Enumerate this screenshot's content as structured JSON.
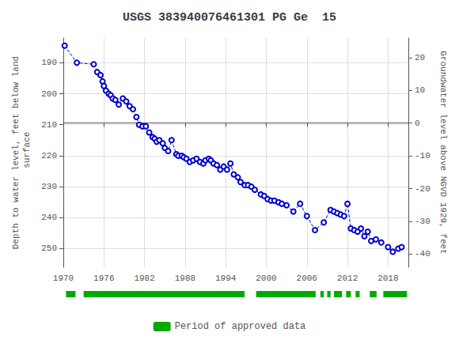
{
  "chart_data": {
    "type": "line",
    "title": "USGS 383940076461301 PG Ge  15",
    "y_label": "Depth to water level, feet below land\n surface",
    "y2_label": "Groundwater level above NGVD 1929, feet",
    "x": [
      1970.2,
      1972.0,
      1974.5,
      1975.0,
      1975.5,
      1975.8,
      1976.0,
      1976.3,
      1976.7,
      1977.0,
      1977.3,
      1977.7,
      1978.2,
      1978.8,
      1979.3,
      1979.8,
      1980.3,
      1980.8,
      1981.2,
      1981.7,
      1982.2,
      1982.7,
      1983.2,
      1983.5,
      1983.8,
      1984.2,
      1984.7,
      1985.0,
      1985.5,
      1986.0,
      1986.7,
      1987.0,
      1987.5,
      1987.8,
      1988.2,
      1988.7,
      1989.2,
      1989.7,
      1990.2,
      1990.7,
      1991.0,
      1991.5,
      1991.8,
      1992.2,
      1992.7,
      1993.2,
      1993.7,
      1994.2,
      1994.7,
      1995.2,
      1995.8,
      1996.2,
      1996.8,
      1997.3,
      1997.8,
      1998.3,
      1999.2,
      1999.7,
      2000.2,
      2000.7,
      2001.2,
      2001.8,
      2002.3,
      2003.0,
      2004.0,
      2005.0,
      2006.0,
      2007.2,
      2008.5,
      2009.5,
      2010.0,
      2010.5,
      2011.0,
      2011.5,
      2012.0,
      2012.5,
      2013.0,
      2013.5,
      2014.0,
      2014.5,
      2015.0,
      2015.5,
      2016.2,
      2017.0,
      2018.0,
      2018.7,
      2019.5,
      2020.0
    ],
    "values": [
      184.5,
      190.0,
      190.5,
      193.0,
      194.0,
      196.0,
      197.5,
      199.0,
      200.0,
      200.5,
      201.5,
      202.0,
      203.5,
      201.5,
      202.5,
      204.0,
      205.0,
      207.5,
      210.0,
      210.5,
      210.5,
      212.5,
      214.0,
      214.5,
      215.5,
      215.0,
      216.0,
      217.5,
      218.5,
      215.0,
      219.5,
      220.0,
      220.0,
      220.5,
      221.0,
      222.0,
      221.5,
      221.0,
      222.0,
      222.5,
      221.5,
      221.0,
      221.5,
      222.5,
      223.0,
      224.5,
      223.5,
      224.5,
      222.5,
      226.0,
      227.0,
      228.5,
      229.5,
      229.5,
      230.0,
      231.0,
      232.5,
      233.0,
      234.0,
      234.5,
      234.5,
      235.0,
      235.5,
      236.0,
      238.0,
      235.5,
      239.5,
      244.0,
      241.5,
      237.5,
      238.0,
      238.5,
      239.0,
      239.5,
      235.5,
      243.5,
      244.0,
      244.5,
      243.5,
      246.0,
      244.5,
      247.5,
      247.0,
      248.0,
      249.5,
      251.0,
      250.0,
      249.5
    ],
    "color": "#0000cc",
    "marker": "circle-open",
    "line_style": "dashed",
    "xlim": [
      1970,
      2021
    ],
    "xticks": [
      1970,
      1976,
      1982,
      1988,
      1994,
      2000,
      2006,
      2012,
      2018
    ],
    "ylim": [
      256,
      182
    ],
    "yticks": [
      190,
      200,
      210,
      220,
      230,
      240,
      250
    ],
    "y2lim": [
      -44,
      26
    ],
    "y2ticks": [
      20,
      10,
      0,
      -10,
      -20,
      -30,
      -40
    ],
    "grid": true,
    "legend": "bottom",
    "approved_periods": {
      "name": "Period of approved data",
      "color": "#00aa00",
      "ranges": [
        [
          1970.4,
          1971.8
        ],
        [
          1973.0,
          1996.8
        ],
        [
          1998.5,
          2007.3
        ],
        [
          2008.0,
          2008.5
        ],
        [
          2009.0,
          2009.5
        ],
        [
          2010.0,
          2011.2
        ],
        [
          2011.8,
          2012.5
        ],
        [
          2013.2,
          2013.8
        ],
        [
          2015.3,
          2016.3
        ],
        [
          2017.3,
          2020.8
        ]
      ]
    }
  }
}
